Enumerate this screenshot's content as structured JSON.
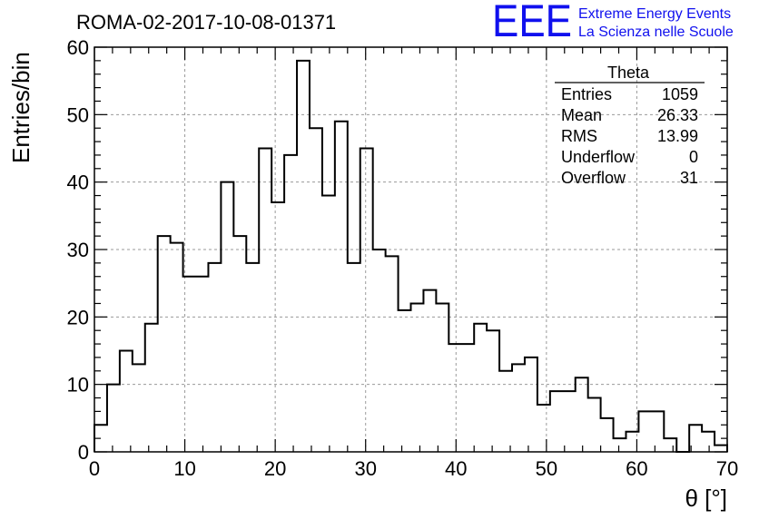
{
  "chart_data": {
    "type": "bar",
    "title": "ROMA-02-2017-10-08-01371",
    "xlabel": "θ [°]",
    "ylabel": "Entries/bin",
    "xlim": [
      0,
      70
    ],
    "ylim": [
      0,
      60
    ],
    "bin_width": 1.4,
    "x_ticks": [
      0,
      10,
      20,
      30,
      40,
      50,
      60,
      70
    ],
    "y_ticks": [
      0,
      10,
      20,
      30,
      40,
      50,
      60
    ],
    "grid": true,
    "values": [
      4,
      10,
      15,
      13,
      19,
      32,
      31,
      26,
      26,
      28,
      40,
      32,
      28,
      45,
      37,
      44,
      58,
      48,
      38,
      49,
      28,
      45,
      30,
      29,
      21,
      22,
      24,
      22,
      16,
      16,
      19,
      18,
      12,
      13,
      14,
      7,
      9,
      9,
      11,
      8,
      5,
      2,
      3,
      6,
      6,
      2,
      0,
      4,
      3,
      1
    ]
  },
  "stats_box": {
    "title": "Theta",
    "rows": [
      {
        "label": "Entries",
        "value": "1059"
      },
      {
        "label": "Mean",
        "value": "26.33"
      },
      {
        "label": "RMS",
        "value": "13.99"
      },
      {
        "label": "Underflow",
        "value": "0"
      },
      {
        "label": "Overflow",
        "value": "31"
      }
    ]
  },
  "logo": {
    "letters": "EEE",
    "line1": "Extreme Energy Events",
    "line2": "La Scienza nelle Scuole",
    "color": "#1010ee"
  }
}
